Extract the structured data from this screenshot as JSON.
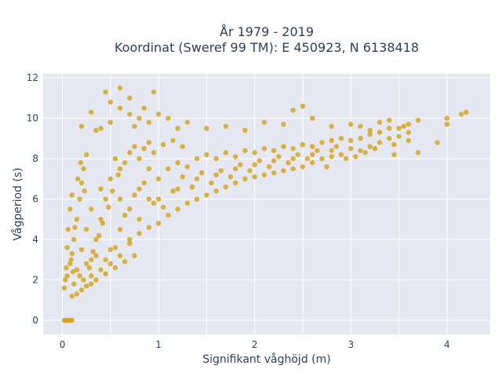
{
  "chart_data": {
    "type": "scatter",
    "title_line1": "År 1979 - 2019",
    "title_line2": "Koordinat (Sweref 99 TM): E 450923, N 6138418",
    "xlabel": "Signifikant våghöjd (m)",
    "ylabel": "Vågperiod (s)",
    "xlim": [
      -0.2,
      4.45
    ],
    "ylim": [
      -0.7,
      12.2
    ],
    "x_ticks": [
      0,
      1,
      2,
      3,
      4
    ],
    "y_ticks": [
      0,
      2,
      4,
      6,
      8,
      10,
      12
    ],
    "grid": true,
    "marker_color": "#d4a017",
    "background_color": "#e5e8f1",
    "series": [
      {
        "points": [
          [
            0.02,
            0.0
          ],
          [
            0.04,
            0.0
          ],
          [
            0.06,
            0.0
          ],
          [
            0.08,
            0.0
          ],
          [
            0.1,
            0.0
          ],
          [
            0.02,
            1.6
          ],
          [
            0.05,
            2.2
          ],
          [
            0.08,
            2.8
          ],
          [
            0.1,
            3.3
          ],
          [
            0.12,
            4.0
          ],
          [
            0.15,
            5.0
          ],
          [
            0.18,
            6.0
          ],
          [
            0.2,
            6.8
          ],
          [
            0.22,
            7.5
          ],
          [
            0.25,
            8.2
          ],
          [
            0.1,
            1.2
          ],
          [
            0.15,
            1.3
          ],
          [
            0.2,
            1.5
          ],
          [
            0.25,
            1.7
          ],
          [
            0.3,
            1.8
          ],
          [
            0.35,
            2.0
          ],
          [
            0.45,
            2.3
          ],
          [
            0.55,
            2.6
          ],
          [
            0.65,
            2.9
          ],
          [
            0.75,
            3.2
          ],
          [
            0.3,
            3.0
          ],
          [
            0.35,
            4.0
          ],
          [
            0.4,
            5.0
          ],
          [
            0.45,
            6.0
          ],
          [
            0.5,
            7.0
          ],
          [
            0.55,
            8.0
          ],
          [
            0.6,
            7.5
          ],
          [
            0.4,
            6.5
          ],
          [
            0.3,
            5.5
          ],
          [
            0.25,
            4.5
          ],
          [
            0.5,
            3.5
          ],
          [
            0.6,
            4.5
          ],
          [
            0.7,
            5.5
          ],
          [
            0.8,
            6.5
          ],
          [
            0.9,
            7.5
          ],
          [
            0.6,
            6.0
          ],
          [
            0.7,
            4.0
          ],
          [
            0.8,
            5.0
          ],
          [
            0.9,
            6.0
          ],
          [
            1.0,
            7.0
          ],
          [
            1.0,
            4.8
          ],
          [
            1.1,
            5.2
          ],
          [
            1.2,
            5.5
          ],
          [
            1.3,
            5.8
          ],
          [
            1.4,
            6.0
          ],
          [
            1.5,
            6.2
          ],
          [
            1.6,
            6.4
          ],
          [
            1.7,
            6.6
          ],
          [
            1.8,
            6.8
          ],
          [
            1.9,
            7.0
          ],
          [
            2.0,
            7.1
          ],
          [
            2.1,
            7.2
          ],
          [
            2.2,
            7.3
          ],
          [
            2.3,
            7.4
          ],
          [
            2.4,
            7.5
          ],
          [
            2.5,
            7.6
          ],
          [
            2.6,
            7.8
          ],
          [
            2.7,
            8.0
          ],
          [
            2.8,
            8.1
          ],
          [
            2.9,
            8.2
          ],
          [
            1.1,
            7.5
          ],
          [
            1.2,
            7.8
          ],
          [
            1.3,
            7.6
          ],
          [
            1.4,
            8.0
          ],
          [
            1.5,
            8.2
          ],
          [
            1.6,
            8.0
          ],
          [
            1.7,
            8.3
          ],
          [
            1.8,
            8.1
          ],
          [
            1.9,
            8.4
          ],
          [
            2.0,
            8.3
          ],
          [
            2.1,
            8.5
          ],
          [
            2.2,
            8.4
          ],
          [
            2.3,
            8.6
          ],
          [
            2.4,
            8.5
          ],
          [
            2.5,
            8.7
          ],
          [
            2.6,
            8.6
          ],
          [
            2.7,
            8.8
          ],
          [
            2.8,
            8.9
          ],
          [
            2.9,
            9.0
          ],
          [
            3.0,
            8.9
          ],
          [
            1.0,
            6.0
          ],
          [
            1.2,
            6.5
          ],
          [
            1.4,
            7.0
          ],
          [
            1.6,
            7.2
          ],
          [
            1.8,
            7.5
          ],
          [
            2.0,
            7.7
          ],
          [
            2.2,
            7.9
          ],
          [
            2.4,
            8.0
          ],
          [
            2.6,
            8.2
          ],
          [
            2.8,
            8.4
          ],
          [
            3.0,
            8.5
          ],
          [
            3.1,
            8.4
          ],
          [
            3.2,
            8.6
          ],
          [
            3.3,
            8.8
          ],
          [
            3.4,
            9.0
          ],
          [
            3.5,
            9.1
          ],
          [
            3.6,
            9.3
          ],
          [
            3.2,
            9.2
          ],
          [
            3.4,
            9.5
          ],
          [
            3.1,
            9.0
          ],
          [
            0.4,
            9.5
          ],
          [
            0.5,
            9.8
          ],
          [
            0.5,
            10.8
          ],
          [
            0.6,
            11.5
          ],
          [
            0.45,
            11.3
          ],
          [
            0.6,
            10.5
          ],
          [
            0.7,
            10.2
          ],
          [
            0.8,
            10.0
          ],
          [
            0.9,
            9.8
          ],
          [
            1.0,
            10.2
          ],
          [
            0.2,
            9.6
          ],
          [
            0.3,
            10.3
          ],
          [
            0.35,
            9.4
          ],
          [
            0.7,
            11.0
          ],
          [
            0.75,
            9.6
          ],
          [
            0.85,
            10.5
          ],
          [
            0.95,
            11.3
          ],
          [
            1.1,
            10.0
          ],
          [
            1.2,
            9.5
          ],
          [
            1.3,
            9.8
          ],
          [
            1.5,
            9.5
          ],
          [
            1.7,
            9.6
          ],
          [
            1.9,
            9.4
          ],
          [
            2.1,
            9.8
          ],
          [
            2.3,
            9.7
          ],
          [
            2.4,
            10.4
          ],
          [
            2.5,
            10.6
          ],
          [
            2.6,
            10.0
          ],
          [
            2.8,
            9.6
          ],
          [
            3.0,
            9.7
          ],
          [
            3.1,
            9.6
          ],
          [
            3.2,
            9.4
          ],
          [
            3.3,
            9.8
          ],
          [
            3.4,
            9.9
          ],
          [
            3.5,
            9.5
          ],
          [
            3.6,
            9.7
          ],
          [
            3.7,
            9.9
          ],
          [
            3.6,
            8.9
          ],
          [
            3.7,
            8.3
          ],
          [
            3.9,
            8.8
          ],
          [
            4.0,
            9.7
          ],
          [
            4.0,
            10.0
          ],
          [
            4.15,
            10.2
          ],
          [
            4.2,
            10.3
          ],
          [
            3.55,
            9.6
          ],
          [
            3.45,
            8.7
          ],
          [
            3.3,
            9.3
          ],
          [
            3.15,
            8.3
          ],
          [
            2.95,
            8.0
          ],
          [
            2.75,
            7.6
          ],
          [
            0.15,
            2.5
          ],
          [
            0.2,
            3.5
          ],
          [
            0.25,
            2.8
          ],
          [
            0.3,
            2.2
          ],
          [
            0.35,
            3.2
          ],
          [
            0.4,
            2.5
          ],
          [
            0.45,
            3.0
          ],
          [
            0.5,
            2.8
          ],
          [
            0.55,
            3.6
          ],
          [
            0.6,
            3.2
          ],
          [
            0.12,
            1.8
          ],
          [
            0.18,
            2.2
          ],
          [
            0.22,
            2.0
          ],
          [
            0.28,
            2.6
          ],
          [
            0.32,
            3.4
          ],
          [
            0.38,
            4.2
          ],
          [
            0.42,
            4.8
          ],
          [
            0.48,
            5.6
          ],
          [
            0.52,
            6.4
          ],
          [
            0.58,
            7.2
          ],
          [
            0.65,
            7.8
          ],
          [
            0.7,
            8.3
          ],
          [
            0.75,
            8.6
          ],
          [
            0.8,
            8.0
          ],
          [
            0.85,
            8.5
          ],
          [
            0.9,
            8.8
          ],
          [
            0.95,
            8.3
          ],
          [
            1.05,
            8.7
          ],
          [
            1.15,
            8.9
          ],
          [
            1.25,
            8.6
          ],
          [
            0.7,
            3.8
          ],
          [
            0.8,
            4.3
          ],
          [
            0.9,
            4.6
          ],
          [
            0.65,
            5.2
          ],
          [
            0.75,
            6.2
          ],
          [
            0.85,
            6.8
          ],
          [
            0.95,
            5.8
          ],
          [
            1.05,
            5.6
          ],
          [
            1.15,
            6.4
          ],
          [
            1.25,
            7.1
          ],
          [
            1.35,
            6.6
          ],
          [
            1.45,
            7.3
          ],
          [
            1.55,
            6.8
          ],
          [
            1.65,
            7.4
          ],
          [
            1.75,
            7.1
          ],
          [
            1.85,
            7.7
          ],
          [
            1.95,
            7.4
          ],
          [
            2.05,
            7.9
          ],
          [
            2.15,
            7.6
          ],
          [
            2.25,
            8.1
          ],
          [
            2.35,
            7.8
          ],
          [
            2.45,
            8.2
          ],
          [
            2.55,
            8.0
          ],
          [
            2.65,
            8.4
          ],
          [
            2.85,
            8.6
          ],
          [
            3.05,
            8.1
          ],
          [
            3.25,
            8.5
          ],
          [
            3.45,
            8.2
          ],
          [
            0.08,
            5.5
          ],
          [
            0.1,
            6.2
          ],
          [
            0.06,
            4.5
          ],
          [
            0.05,
            3.6
          ],
          [
            0.04,
            2.6
          ],
          [
            0.03,
            2.0
          ],
          [
            0.09,
            3.0
          ],
          [
            0.11,
            2.4
          ],
          [
            0.13,
            4.6
          ],
          [
            0.16,
            7.0
          ],
          [
            0.19,
            7.8
          ],
          [
            0.23,
            6.4
          ]
        ]
      }
    ]
  }
}
